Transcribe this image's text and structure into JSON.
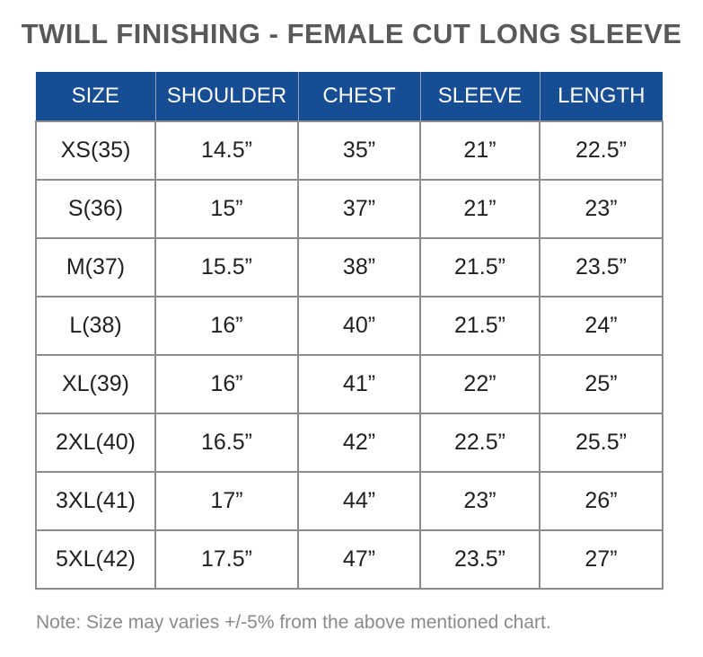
{
  "title": "TWILL FINISHING - FEMALE CUT LONG SLEEVE",
  "table": {
    "headers": [
      "SIZE",
      "SHOULDER",
      "CHEST",
      "SLEEVE",
      "LENGTH"
    ],
    "rows": [
      [
        "XS(35)",
        "14.5”",
        "35”",
        "21”",
        "22.5”"
      ],
      [
        "S(36)",
        "15”",
        "37”",
        "21”",
        "23”"
      ],
      [
        "M(37)",
        "15.5”",
        "38”",
        "21.5”",
        "23.5”"
      ],
      [
        "L(38)",
        "16”",
        "40”",
        "21.5”",
        "24”"
      ],
      [
        "XL(39)",
        "16”",
        "41”",
        "22”",
        "25”"
      ],
      [
        "2XL(40)",
        "16.5”",
        "42”",
        "22.5”",
        "25.5”"
      ],
      [
        "3XL(41)",
        "17”",
        "44”",
        "23”",
        "26”"
      ],
      [
        "5XL(42)",
        "17.5”",
        "47”",
        "23.5”",
        "27”"
      ]
    ]
  },
  "note": "Note: Size may varies +/-5% from the above mentioned chart.",
  "colors": {
    "header_bg": "#174d92",
    "title_text": "#58595b",
    "grid_lines": "#8c8c8c",
    "note_text": "#8a8a8a"
  }
}
